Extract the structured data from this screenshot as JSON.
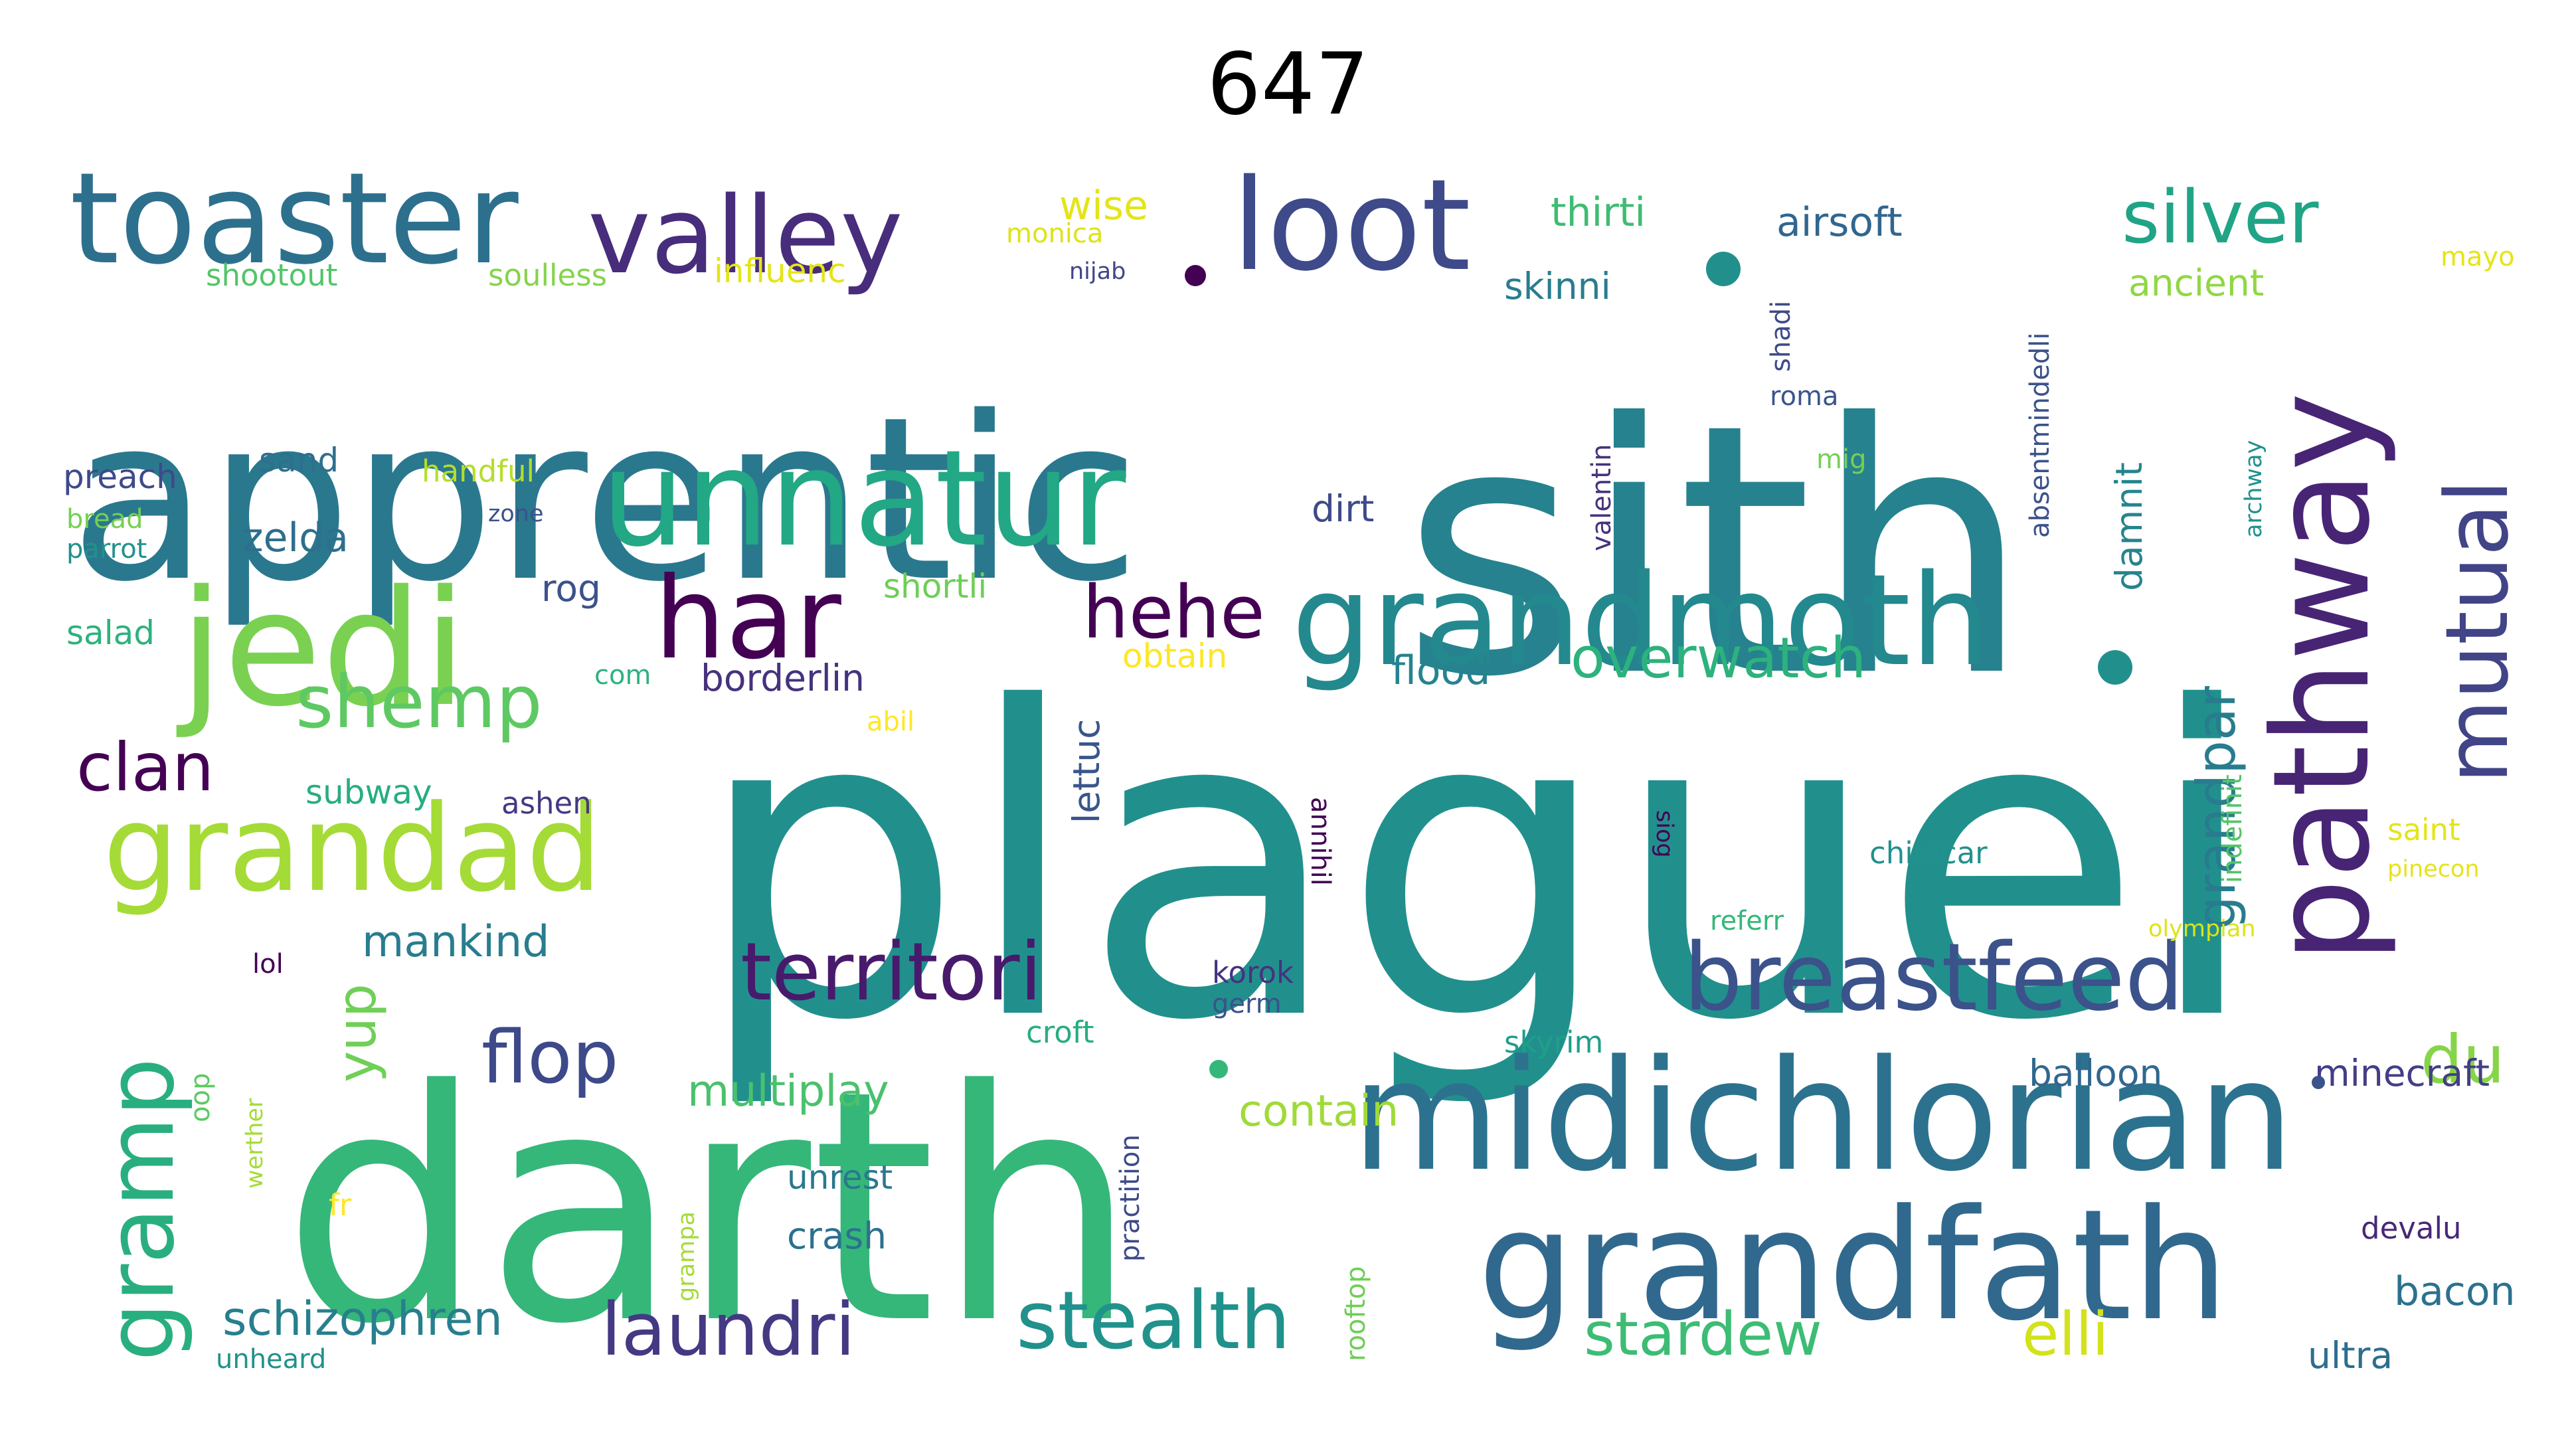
{
  "title": "647",
  "words": [
    {
      "text": "plaguei",
      "color": "#21908d"
    },
    {
      "text": "darth",
      "color": "#35b779"
    },
    {
      "text": "sith",
      "color": "#26828e"
    },
    {
      "text": "apprentic",
      "color": "#2a788e"
    },
    {
      "text": "midichlorian",
      "color": "#2c728e"
    },
    {
      "text": "grandfath",
      "color": "#31688e"
    },
    {
      "text": "toaster",
      "color": "#2d708e"
    },
    {
      "text": "valley",
      "color": "#472d7b"
    },
    {
      "text": "loot",
      "color": "#3e4a89"
    },
    {
      "text": "unnatur",
      "color": "#22a884"
    },
    {
      "text": "grandmoth",
      "color": "#23898e"
    },
    {
      "text": "pathway",
      "color": "#482475"
    },
    {
      "text": "jedi",
      "color": "#7ad151"
    },
    {
      "text": "har",
      "color": "#440154"
    },
    {
      "text": "grandad",
      "color": "#a5db36"
    },
    {
      "text": "breastfeed",
      "color": "#3b528b"
    },
    {
      "text": "mutual",
      "color": "#414487"
    },
    {
      "text": "silver",
      "color": "#20a486"
    },
    {
      "text": "territori",
      "color": "#481a6c"
    },
    {
      "text": "gramp",
      "color": "#29af7f"
    },
    {
      "text": "stealth",
      "color": "#21918c"
    },
    {
      "text": "laundri",
      "color": "#443983"
    },
    {
      "text": "hehe",
      "color": "#440154"
    },
    {
      "text": "shemp",
      "color": "#5ec962"
    },
    {
      "text": "clan",
      "color": "#440154"
    },
    {
      "text": "flop",
      "color": "#3e4989"
    },
    {
      "text": "overwatch",
      "color": "#2db27d"
    },
    {
      "text": "du",
      "color": "#86d549"
    },
    {
      "text": "elli",
      "color": "#d2e21b"
    },
    {
      "text": "stardew",
      "color": "#3dbc74"
    },
    {
      "text": "schizophren",
      "color": "#277f8e"
    },
    {
      "text": "grandpar",
      "color": "#287c8e"
    },
    {
      "text": "yup",
      "color": "#70cf57"
    },
    {
      "text": "mankind",
      "color": "#287d8e"
    },
    {
      "text": "multiplay",
      "color": "#4ac16d"
    },
    {
      "text": "contain",
      "color": "#a0da39"
    },
    {
      "text": "airsoft",
      "color": "#31668e"
    },
    {
      "text": "thirti",
      "color": "#3fbc73"
    },
    {
      "text": "wise",
      "color": "#e5e419"
    },
    {
      "text": "zelda",
      "color": "#2e6e8e"
    },
    {
      "text": "flood",
      "color": "#25838e"
    },
    {
      "text": "borderlin",
      "color": "#46327e"
    },
    {
      "text": "rog",
      "color": "#3b528b"
    },
    {
      "text": "skinni",
      "color": "#287d8e"
    },
    {
      "text": "damnit",
      "color": "#25848e"
    },
    {
      "text": "ancient",
      "color": "#90d743"
    },
    {
      "text": "dirt",
      "color": "#3e4a89"
    },
    {
      "text": "lettuc",
      "color": "#39568c"
    },
    {
      "text": "shortli",
      "color": "#6ece58"
    },
    {
      "text": "preach",
      "color": "#3e4a89"
    },
    {
      "text": "sand",
      "color": "#2e6f8e"
    },
    {
      "text": "salad",
      "color": "#2db27d"
    },
    {
      "text": "subway",
      "color": "#27ad81"
    },
    {
      "text": "ashen",
      "color": "#443983"
    },
    {
      "text": "obtain",
      "color": "#fde725"
    },
    {
      "text": "bacon",
      "color": "#2c718e"
    },
    {
      "text": "ultra",
      "color": "#2e6e8e"
    },
    {
      "text": "balloon",
      "color": "#31678e"
    },
    {
      "text": "minecraft",
      "color": "#433e85"
    },
    {
      "text": "crash",
      "color": "#2c718e"
    },
    {
      "text": "unrest",
      "color": "#2a788e"
    },
    {
      "text": "childcar",
      "color": "#21918c"
    },
    {
      "text": "skyrim",
      "color": "#1f9e89"
    },
    {
      "text": "croft",
      "color": "#26ad81"
    },
    {
      "text": "korok",
      "color": "#46337f"
    },
    {
      "text": "germ",
      "color": "#3b528b"
    },
    {
      "text": "referr",
      "color": "#35b779"
    },
    {
      "text": "devalu",
      "color": "#482878"
    },
    {
      "text": "influenc",
      "color": "#e5e419"
    },
    {
      "text": "monica",
      "color": "#dde318"
    },
    {
      "text": "shootout",
      "color": "#52c569"
    },
    {
      "text": "soulless",
      "color": "#84d44b"
    },
    {
      "text": "nijab",
      "color": "#404688"
    },
    {
      "text": "handful",
      "color": "#b5de2b"
    },
    {
      "text": "roma",
      "color": "#39558c"
    },
    {
      "text": "mig",
      "color": "#75d054"
    },
    {
      "text": "zone",
      "color": "#3b528b"
    },
    {
      "text": "bread",
      "color": "#75d054"
    },
    {
      "text": "parrot",
      "color": "#21918c"
    },
    {
      "text": "com",
      "color": "#2db27d"
    },
    {
      "text": "abil",
      "color": "#fde725"
    },
    {
      "text": "saint",
      "color": "#e5e419"
    },
    {
      "text": "pinecon",
      "color": "#e5e419"
    },
    {
      "text": "olympian",
      "color": "#dde318"
    },
    {
      "text": "mayo",
      "color": "#e5e419"
    },
    {
      "text": "shadi",
      "color": "#3e4a89"
    },
    {
      "text": "valentin",
      "color": "#46327e"
    },
    {
      "text": "absentmindedli",
      "color": "#3b528b"
    },
    {
      "text": "archway",
      "color": "#21918c"
    },
    {
      "text": "indefinit",
      "color": "#52c569"
    },
    {
      "text": "siog",
      "color": "#440154"
    },
    {
      "text": "annihil",
      "color": "#440154"
    },
    {
      "text": "practition",
      "color": "#3e4a89"
    },
    {
      "text": "rooftop",
      "color": "#6ece58"
    },
    {
      "text": "grampa",
      "color": "#a5db36"
    },
    {
      "text": "werther",
      "color": "#a5db36"
    },
    {
      "text": "oop",
      "color": "#5ec962"
    },
    {
      "text": "fr",
      "color": "#fde725"
    },
    {
      "text": "lol",
      "color": "#440154"
    },
    {
      "text": "unheard",
      "color": "#21918c"
    }
  ]
}
